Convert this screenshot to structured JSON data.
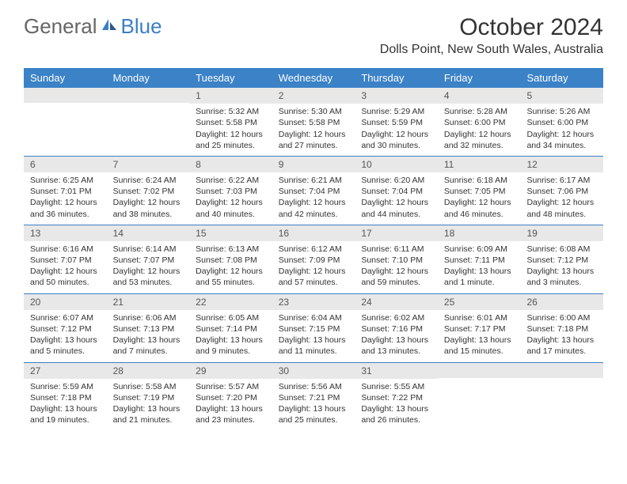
{
  "logo": {
    "text1": "General",
    "text2": "Blue"
  },
  "title": "October 2024",
  "location": "Dolls Point, New South Wales, Australia",
  "colors": {
    "header_bg": "#3b82c7",
    "header_text": "#ffffff",
    "daynum_bg": "#e8e8e8",
    "rule": "#3b7fc4",
    "logo_gray": "#666666",
    "logo_blue": "#3b7fc4"
  },
  "day_headers": [
    "Sunday",
    "Monday",
    "Tuesday",
    "Wednesday",
    "Thursday",
    "Friday",
    "Saturday"
  ],
  "weeks": [
    [
      null,
      null,
      {
        "n": "1",
        "sr": "5:32 AM",
        "ss": "5:58 PM",
        "dl": "12 hours and 25 minutes."
      },
      {
        "n": "2",
        "sr": "5:30 AM",
        "ss": "5:58 PM",
        "dl": "12 hours and 27 minutes."
      },
      {
        "n": "3",
        "sr": "5:29 AM",
        "ss": "5:59 PM",
        "dl": "12 hours and 30 minutes."
      },
      {
        "n": "4",
        "sr": "5:28 AM",
        "ss": "6:00 PM",
        "dl": "12 hours and 32 minutes."
      },
      {
        "n": "5",
        "sr": "5:26 AM",
        "ss": "6:00 PM",
        "dl": "12 hours and 34 minutes."
      }
    ],
    [
      {
        "n": "6",
        "sr": "6:25 AM",
        "ss": "7:01 PM",
        "dl": "12 hours and 36 minutes."
      },
      {
        "n": "7",
        "sr": "6:24 AM",
        "ss": "7:02 PM",
        "dl": "12 hours and 38 minutes."
      },
      {
        "n": "8",
        "sr": "6:22 AM",
        "ss": "7:03 PM",
        "dl": "12 hours and 40 minutes."
      },
      {
        "n": "9",
        "sr": "6:21 AM",
        "ss": "7:04 PM",
        "dl": "12 hours and 42 minutes."
      },
      {
        "n": "10",
        "sr": "6:20 AM",
        "ss": "7:04 PM",
        "dl": "12 hours and 44 minutes."
      },
      {
        "n": "11",
        "sr": "6:18 AM",
        "ss": "7:05 PM",
        "dl": "12 hours and 46 minutes."
      },
      {
        "n": "12",
        "sr": "6:17 AM",
        "ss": "7:06 PM",
        "dl": "12 hours and 48 minutes."
      }
    ],
    [
      {
        "n": "13",
        "sr": "6:16 AM",
        "ss": "7:07 PM",
        "dl": "12 hours and 50 minutes."
      },
      {
        "n": "14",
        "sr": "6:14 AM",
        "ss": "7:07 PM",
        "dl": "12 hours and 53 minutes."
      },
      {
        "n": "15",
        "sr": "6:13 AM",
        "ss": "7:08 PM",
        "dl": "12 hours and 55 minutes."
      },
      {
        "n": "16",
        "sr": "6:12 AM",
        "ss": "7:09 PM",
        "dl": "12 hours and 57 minutes."
      },
      {
        "n": "17",
        "sr": "6:11 AM",
        "ss": "7:10 PM",
        "dl": "12 hours and 59 minutes."
      },
      {
        "n": "18",
        "sr": "6:09 AM",
        "ss": "7:11 PM",
        "dl": "13 hours and 1 minute."
      },
      {
        "n": "19",
        "sr": "6:08 AM",
        "ss": "7:12 PM",
        "dl": "13 hours and 3 minutes."
      }
    ],
    [
      {
        "n": "20",
        "sr": "6:07 AM",
        "ss": "7:12 PM",
        "dl": "13 hours and 5 minutes."
      },
      {
        "n": "21",
        "sr": "6:06 AM",
        "ss": "7:13 PM",
        "dl": "13 hours and 7 minutes."
      },
      {
        "n": "22",
        "sr": "6:05 AM",
        "ss": "7:14 PM",
        "dl": "13 hours and 9 minutes."
      },
      {
        "n": "23",
        "sr": "6:04 AM",
        "ss": "7:15 PM",
        "dl": "13 hours and 11 minutes."
      },
      {
        "n": "24",
        "sr": "6:02 AM",
        "ss": "7:16 PM",
        "dl": "13 hours and 13 minutes."
      },
      {
        "n": "25",
        "sr": "6:01 AM",
        "ss": "7:17 PM",
        "dl": "13 hours and 15 minutes."
      },
      {
        "n": "26",
        "sr": "6:00 AM",
        "ss": "7:18 PM",
        "dl": "13 hours and 17 minutes."
      }
    ],
    [
      {
        "n": "27",
        "sr": "5:59 AM",
        "ss": "7:18 PM",
        "dl": "13 hours and 19 minutes."
      },
      {
        "n": "28",
        "sr": "5:58 AM",
        "ss": "7:19 PM",
        "dl": "13 hours and 21 minutes."
      },
      {
        "n": "29",
        "sr": "5:57 AM",
        "ss": "7:20 PM",
        "dl": "13 hours and 23 minutes."
      },
      {
        "n": "30",
        "sr": "5:56 AM",
        "ss": "7:21 PM",
        "dl": "13 hours and 25 minutes."
      },
      {
        "n": "31",
        "sr": "5:55 AM",
        "ss": "7:22 PM",
        "dl": "13 hours and 26 minutes."
      },
      null,
      null
    ]
  ],
  "labels": {
    "sunrise": "Sunrise:",
    "sunset": "Sunset:",
    "daylight": "Daylight:"
  }
}
